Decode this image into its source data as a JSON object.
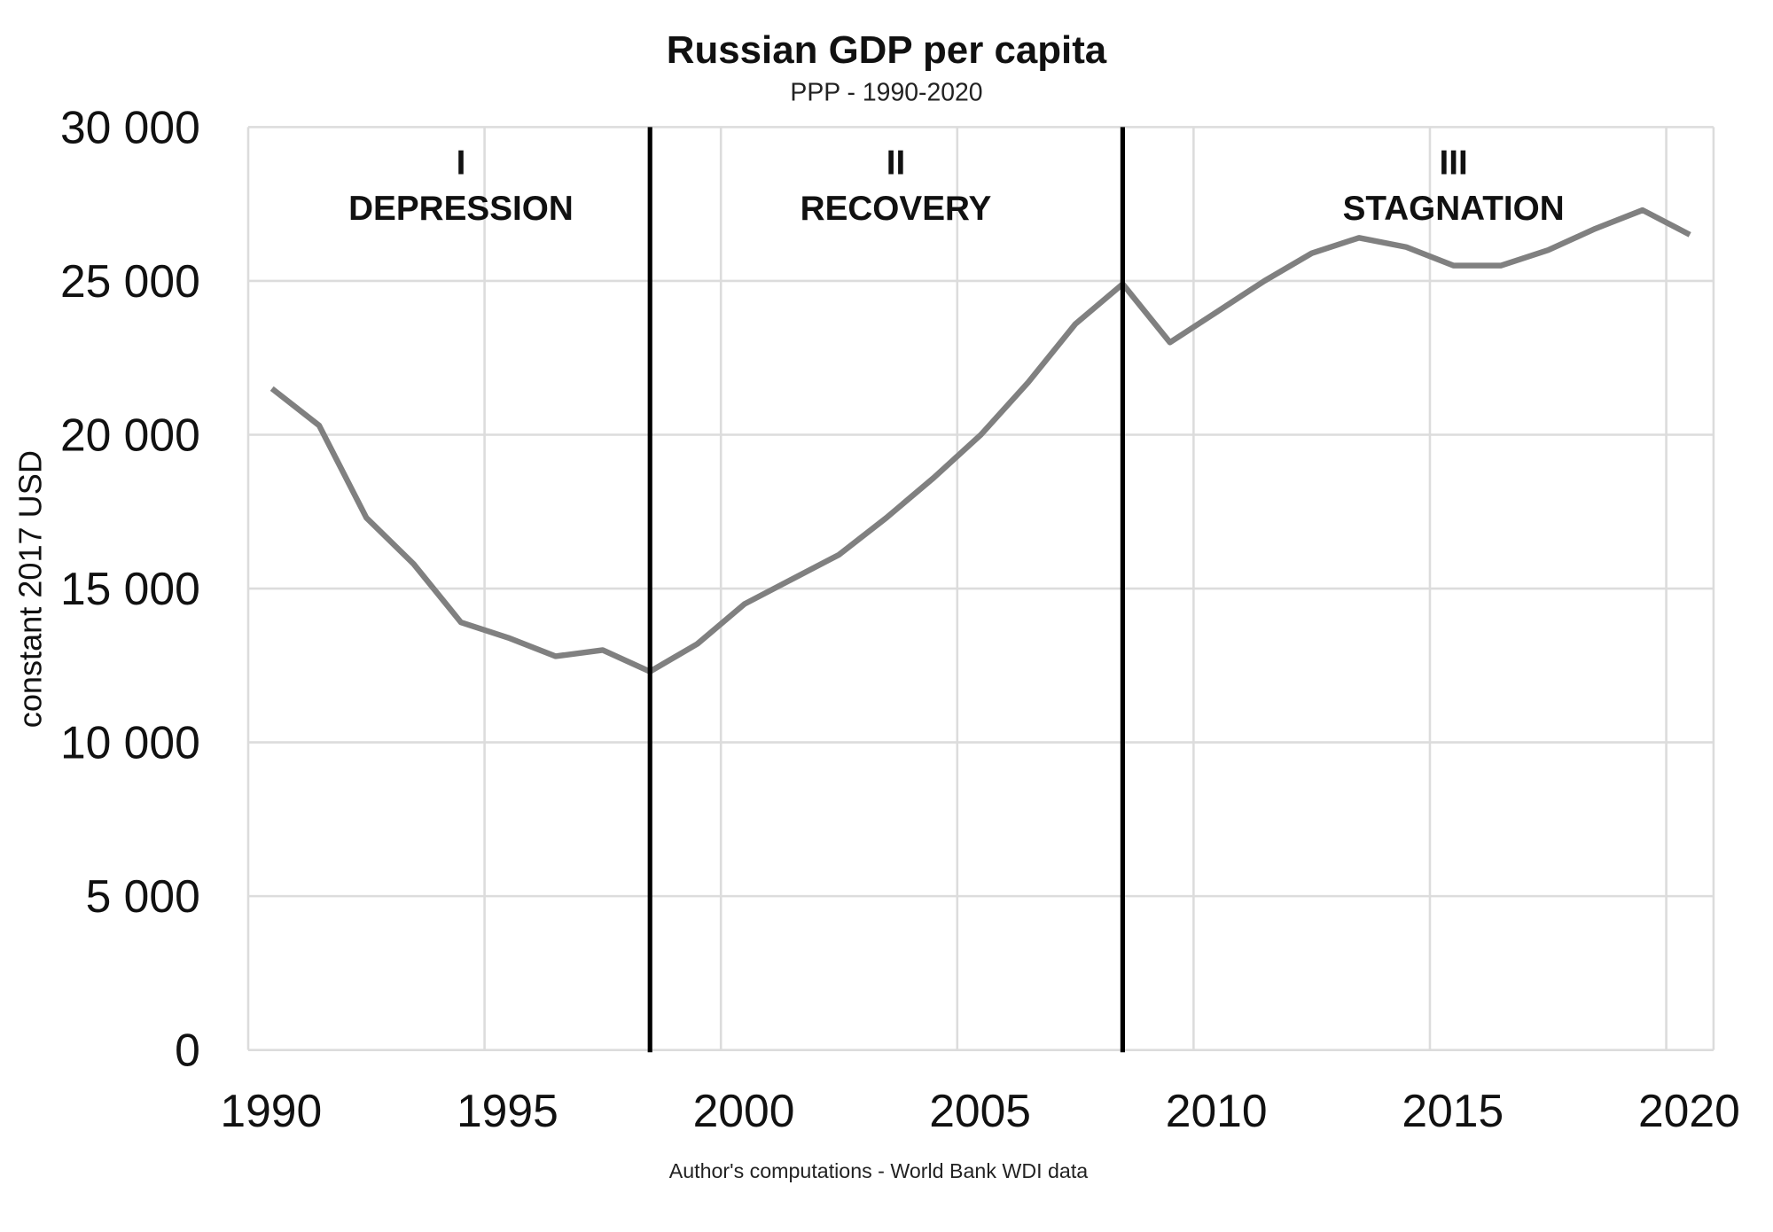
{
  "chart_data": {
    "type": "line",
    "title": "Russian GDP per capita",
    "subtitle": "PPP - 1990-2020",
    "ylabel": "constant 2017 USD",
    "xlabel": "",
    "source": "Author's computations - World Bank WDI data",
    "ylim": [
      0,
      30000
    ],
    "xlim": [
      1990,
      2020
    ],
    "grid": true,
    "line_color": "#808080",
    "x_ticks": [
      1990,
      1995,
      2000,
      2005,
      2010,
      2015,
      2020
    ],
    "x_tick_labels": [
      "1990",
      "1995",
      "2000",
      "2005",
      "2010",
      "2015",
      "2020"
    ],
    "y_ticks": [
      0,
      5000,
      10000,
      15000,
      20000,
      25000,
      30000
    ],
    "y_tick_labels": [
      "0",
      "5 000",
      "10 000",
      "15 000",
      "20 000",
      "25 000",
      "30 000"
    ],
    "x": [
      1990,
      1991,
      1992,
      1993,
      1994,
      1995,
      1996,
      1997,
      1998,
      1999,
      2000,
      2001,
      2002,
      2003,
      2004,
      2005,
      2006,
      2007,
      2008,
      2009,
      2010,
      2011,
      2012,
      2013,
      2014,
      2015,
      2016,
      2017,
      2018,
      2019,
      2020
    ],
    "values": [
      21500,
      20300,
      17300,
      15800,
      13900,
      13400,
      12800,
      13000,
      12300,
      13200,
      14500,
      15300,
      16100,
      17300,
      18600,
      20000,
      21700,
      23600,
      24900,
      23000,
      24000,
      25000,
      25900,
      26400,
      26100,
      25500,
      25500,
      26000,
      26700,
      27300,
      26500
    ],
    "dividers": [
      1998,
      2008
    ],
    "periods": [
      {
        "numeral": "I",
        "label": "DEPRESSION",
        "center_year": 1994
      },
      {
        "numeral": "II",
        "label": "RECOVERY",
        "center_year": 2003.2
      },
      {
        "numeral": "III",
        "label": "STAGNATION",
        "center_year": 2015
      }
    ]
  }
}
